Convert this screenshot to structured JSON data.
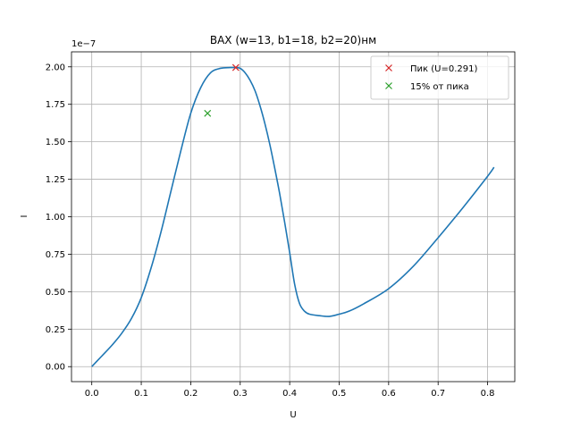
{
  "chart_data": {
    "type": "line",
    "title": "ВАХ (w=13, b1=18, b2=20)нм",
    "xlabel": "U",
    "ylabel": "I",
    "y_offset_text": "1e−7",
    "y_scale": 1e-07,
    "xlim": [
      -0.041,
      0.855
    ],
    "ylim": [
      -0.1,
      2.1
    ],
    "x_ticks": [
      0.0,
      0.1,
      0.2,
      0.3,
      0.4,
      0.5,
      0.6,
      0.7,
      0.8
    ],
    "x_tick_labels": [
      "0.0",
      "0.1",
      "0.2",
      "0.3",
      "0.4",
      "0.5",
      "0.6",
      "0.7",
      "0.8"
    ],
    "y_ticks": [
      0.0,
      0.25,
      0.5,
      0.75,
      1.0,
      1.25,
      1.5,
      1.75,
      2.0
    ],
    "y_tick_labels": [
      "0.00",
      "0.25",
      "0.50",
      "0.75",
      "1.00",
      "1.25",
      "1.50",
      "1.75",
      "2.00"
    ],
    "grid": true,
    "legend_position": "top-right",
    "series": [
      {
        "color": "#1f77b4",
        "x": [
          0.0,
          0.02,
          0.04,
          0.06,
          0.08,
          0.1,
          0.12,
          0.14,
          0.16,
          0.18,
          0.2,
          0.22,
          0.24,
          0.26,
          0.28,
          0.291,
          0.3,
          0.31,
          0.32,
          0.33,
          0.34,
          0.35,
          0.36,
          0.37,
          0.38,
          0.39,
          0.4,
          0.41,
          0.42,
          0.43,
          0.44,
          0.46,
          0.48,
          0.5,
          0.52,
          0.55,
          0.6,
          0.65,
          0.7,
          0.75,
          0.8,
          0.813
        ],
        "y": [
          0.0,
          0.07,
          0.14,
          0.22,
          0.32,
          0.46,
          0.66,
          0.9,
          1.17,
          1.44,
          1.69,
          1.86,
          1.96,
          1.99,
          1.995,
          1.995,
          1.99,
          1.96,
          1.91,
          1.84,
          1.74,
          1.62,
          1.48,
          1.32,
          1.15,
          0.96,
          0.76,
          0.55,
          0.42,
          0.37,
          0.35,
          0.34,
          0.335,
          0.35,
          0.37,
          0.42,
          0.52,
          0.67,
          0.86,
          1.06,
          1.27,
          1.33
        ]
      }
    ],
    "markers": [
      {
        "label": "Пик (U=0.291)",
        "x": 0.291,
        "y": 1.995,
        "color": "#d62728",
        "symbol": "x"
      },
      {
        "label": "15% от пика",
        "x": 0.234,
        "y": 1.69,
        "color": "#2ca02c",
        "symbol": "x"
      }
    ]
  }
}
